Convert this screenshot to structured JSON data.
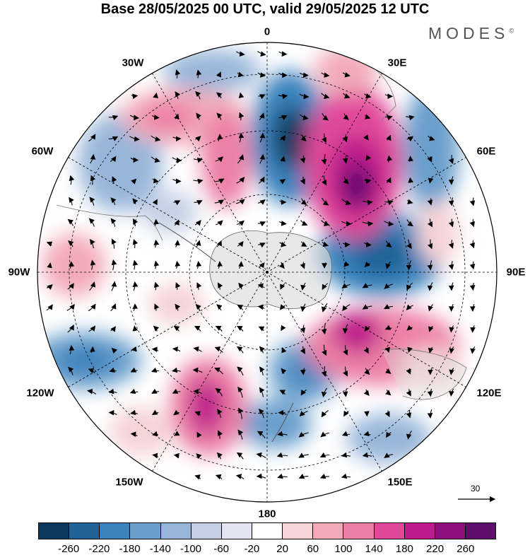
{
  "title": "Base 28/05/2025 00 UTC, valid 29/05/2025 12 UTC",
  "brand": {
    "name": "MODES",
    "mark": "©"
  },
  "longitude_labels": {
    "top": "0",
    "bottom": "180",
    "left": "90W",
    "right": "90E",
    "nw30": "30W",
    "nw60": "60W",
    "ne30": "30E",
    "ne60": "60E",
    "sw120": "120W",
    "sw150": "150W",
    "se120": "120E",
    "se150": "150E"
  },
  "reference_vector": {
    "value": "30"
  },
  "colorbar": {
    "colors": [
      "#0b3a5e",
      "#1f6399",
      "#3b83bd",
      "#6a9fcc",
      "#98b6d9",
      "#c5d0e6",
      "#e4e5f0",
      "#ffffff",
      "#f6d3d6",
      "#f2aab8",
      "#ec7fa6",
      "#e1489a",
      "#bf1a8b",
      "#8f0f7e",
      "#5e0f6e"
    ],
    "ticks": [
      "-260",
      "-220",
      "-180",
      "-140",
      "-100",
      "-60",
      "-20",
      "20",
      "60",
      "100",
      "140",
      "180",
      "220",
      "260"
    ]
  },
  "colors": {
    "land": "#d9d9d9",
    "frame": "#000000"
  }
}
